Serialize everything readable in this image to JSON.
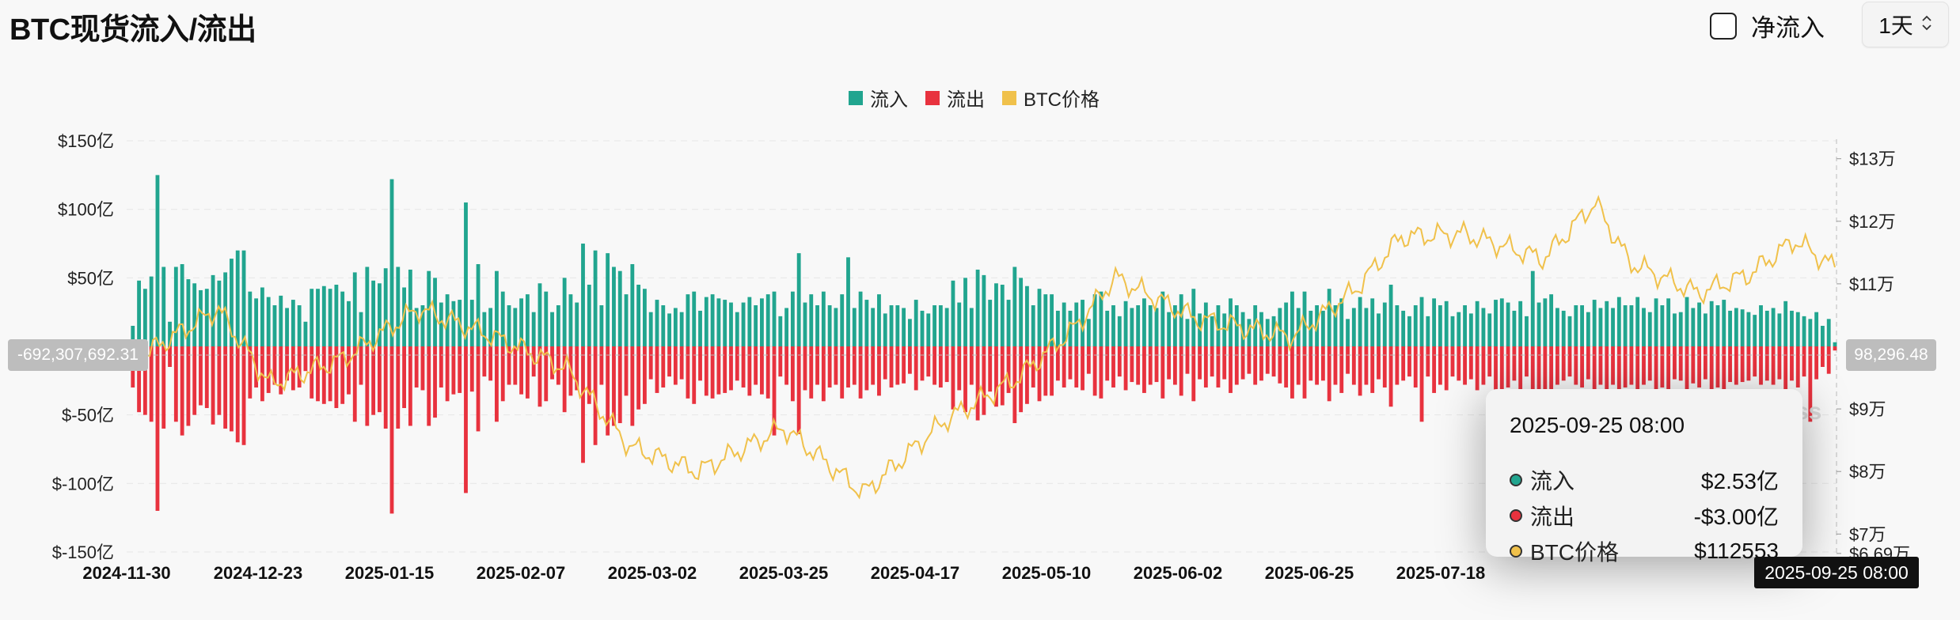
{
  "header": {
    "title": "BTC现货流入/流出",
    "net_flow_label": "净流入",
    "period_value": "1天",
    "period_arrow": "⌃⌄"
  },
  "colors": {
    "inflow": "#21a58f",
    "outflow": "#e8323e",
    "price": "#f0c14b",
    "grid": "#e6e6e6"
  },
  "legend": [
    {
      "name": "流入",
      "color": "#21a58f"
    },
    {
      "name": "流出",
      "color": "#e8323e"
    },
    {
      "name": "BTC价格",
      "color": "#f0c14b"
    }
  ],
  "tooltip": {
    "date": "2025-09-25 08:00",
    "rows": [
      {
        "name": "流入",
        "value": "$2.53亿",
        "color": "#21a58f"
      },
      {
        "name": "流出",
        "value": "-$3.00亿",
        "color": "#e8323e"
      },
      {
        "name": "BTC价格",
        "value": "$112553",
        "color": "#f0c14b"
      }
    ]
  },
  "crosshair": {
    "left_value": "-692,307,692.31",
    "right_value": "98,296.48",
    "date_label": "2025-09-25 08:00"
  },
  "watermark": "ss",
  "chart_data": {
    "type": "bar",
    "title": "BTC现货流入/流出",
    "xlabel": "",
    "ylabel": "",
    "x_start": "2024-11-30",
    "x_end": "2025-09-25",
    "x_tick_labels": [
      "2024-11-30",
      "2024-12-23",
      "2025-01-15",
      "2025-02-07",
      "2025-03-02",
      "2025-03-25",
      "2025-04-17",
      "2025-05-10",
      "2025-06-02",
      "2025-06-25",
      "2025-07-18"
    ],
    "y_left_ticks": [
      "$150亿",
      "$100亿",
      "$50亿",
      "$-50亿",
      "$-100亿",
      "$-150亿"
    ],
    "y_left_range": [
      -150,
      150
    ],
    "y_left_unit": "亿 USD",
    "y_right_ticks": [
      "$13万",
      "$12万",
      "$11万",
      "$9万",
      "$8万",
      "$7万",
      "$6.69万"
    ],
    "y_right_range": [
      66900,
      130000
    ],
    "series": [
      {
        "name": "流入",
        "type": "bar",
        "values": [
          3,
          15,
          48,
          42,
          51,
          125,
          58,
          18,
          58,
          60,
          49,
          46,
          41,
          42,
          52,
          48,
          54,
          64,
          70,
          70,
          40,
          35,
          43,
          36,
          30,
          37,
          28,
          34,
          30,
          18,
          42,
          42,
          44,
          42,
          45,
          40,
          33,
          54,
          25,
          58,
          48,
          46,
          57,
          122,
          58,
          43,
          56,
          28,
          30,
          55,
          50,
          32,
          38,
          33,
          34,
          105,
          34,
          60,
          25,
          28,
          55,
          40,
          30,
          28,
          35,
          38,
          25,
          46,
          40,
          25,
          30,
          50,
          38,
          32,
          75,
          45,
          70,
          30,
          68,
          58,
          55,
          38,
          60,
          45,
          42,
          25,
          34,
          30,
          24,
          28,
          25,
          38,
          40,
          26,
          36,
          38,
          35,
          34,
          32,
          25,
          32,
          36,
          30,
          35,
          38,
          40,
          22,
          28,
          40,
          68,
          32,
          38,
          30,
          40,
          30,
          28,
          38,
          65,
          28,
          40,
          34,
          28,
          38,
          24,
          30,
          30,
          28,
          20,
          34,
          26,
          24,
          30,
          30,
          28,
          48,
          32,
          50,
          28,
          56,
          52,
          34,
          46,
          45,
          34,
          58,
          50,
          44,
          30,
          42,
          38,
          38,
          26,
          32,
          26,
          32,
          34,
          20,
          38,
          40,
          26,
          30,
          22,
          33,
          28,
          30,
          35,
          30,
          28,
          40,
          25,
          30,
          38,
          20,
          42,
          24,
          32,
          22,
          30,
          24,
          35,
          30,
          25,
          20,
          30,
          25,
          20,
          22,
          28,
          32,
          40,
          28,
          40,
          26,
          30,
          26,
          42,
          30,
          35,
          20,
          28,
          36,
          28,
          35,
          24,
          32,
          45,
          30,
          26,
          22,
          30,
          36,
          22,
          35,
          30,
          33,
          22,
          25,
          30,
          24,
          33,
          28,
          24,
          34,
          35,
          32,
          26,
          33,
          22,
          55,
          32,
          35,
          38,
          28,
          26,
          22,
          30,
          30,
          25,
          34,
          28,
          33,
          28,
          36,
          30,
          30,
          36,
          28,
          25,
          35,
          30,
          35,
          24,
          25,
          36,
          28,
          32,
          24,
          33,
          30,
          34,
          26,
          28,
          27,
          25,
          23,
          30,
          26,
          28,
          24,
          33,
          26,
          25,
          22,
          20,
          25,
          15,
          20,
          3
        ]
      },
      {
        "name": "流出",
        "type": "bar",
        "values": [
          -3,
          -30,
          -48,
          -50,
          -55,
          -120,
          -60,
          -15,
          -55,
          -65,
          -58,
          -50,
          -43,
          -45,
          -57,
          -50,
          -60,
          -62,
          -70,
          -72,
          -38,
          -30,
          -40,
          -34,
          -28,
          -35,
          -25,
          -32,
          -30,
          -18,
          -38,
          -40,
          -42,
          -40,
          -45,
          -42,
          -35,
          -55,
          -28,
          -58,
          -50,
          -48,
          -60,
          -122,
          -60,
          -45,
          -58,
          -30,
          -32,
          -58,
          -52,
          -30,
          -40,
          -35,
          -34,
          -107,
          -33,
          -62,
          -22,
          -25,
          -55,
          -40,
          -28,
          -28,
          -35,
          -38,
          -22,
          -44,
          -40,
          -24,
          -28,
          -48,
          -36,
          -32,
          -85,
          -42,
          -72,
          -28,
          -65,
          -58,
          -56,
          -36,
          -58,
          -46,
          -42,
          -24,
          -34,
          -30,
          -22,
          -28,
          -24,
          -38,
          -42,
          -25,
          -36,
          -38,
          -35,
          -34,
          -32,
          -25,
          -30,
          -36,
          -28,
          -35,
          -38,
          -65,
          -22,
          -28,
          -40,
          -64,
          -32,
          -38,
          -28,
          -40,
          -30,
          -28,
          -38,
          -30,
          -28,
          -38,
          -32,
          -28,
          -36,
          -24,
          -30,
          -28,
          -27,
          -20,
          -32,
          -25,
          -22,
          -28,
          -30,
          -26,
          -46,
          -32,
          -48,
          -28,
          -54,
          -50,
          -33,
          -44,
          -43,
          -34,
          -56,
          -48,
          -42,
          -30,
          -40,
          -36,
          -36,
          -25,
          -30,
          -24,
          -30,
          -32,
          -20,
          -36,
          -38,
          -25,
          -30,
          -22,
          -32,
          -26,
          -28,
          -34,
          -28,
          -26,
          -38,
          -24,
          -28,
          -36,
          -20,
          -40,
          -24,
          -30,
          -22,
          -30,
          -24,
          -34,
          -28,
          -24,
          -20,
          -28,
          -25,
          -20,
          -22,
          -27,
          -30,
          -38,
          -28,
          -38,
          -25,
          -28,
          -25,
          -40,
          -28,
          -34,
          -20,
          -28,
          -36,
          -28,
          -34,
          -24,
          -30,
          -44,
          -28,
          -25,
          -22,
          -30,
          -55,
          -22,
          -34,
          -28,
          -32,
          -22,
          -25,
          -28,
          -24,
          -32,
          -28,
          -22,
          -33,
          -35,
          -30,
          -25,
          -32,
          -22,
          -52,
          -32,
          -34,
          -36,
          -28,
          -25,
          -22,
          -28,
          -30,
          -24,
          -32,
          -28,
          -32,
          -28,
          -35,
          -30,
          -28,
          -35,
          -28,
          -25,
          -34,
          -30,
          -33,
          -24,
          -25,
          -35,
          -27,
          -30,
          -24,
          -32,
          -30,
          -33,
          -26,
          -28,
          -26,
          -25,
          -22,
          -28,
          -25,
          -28,
          -24,
          -32,
          -25,
          -30,
          -22,
          -55,
          -24,
          -15,
          -20,
          -3
        ]
      },
      {
        "name": "BTC价格",
        "type": "line",
        "points_x_date": [
          "2024-11-30",
          "2024-12-16",
          "2024-12-25",
          "2025-01-07",
          "2025-01-20",
          "2025-02-01",
          "2025-02-15",
          "2025-02-26",
          "2025-03-10",
          "2025-03-25",
          "2025-04-08",
          "2025-04-22",
          "2025-05-05",
          "2025-05-15",
          "2025-05-22",
          "2025-06-05",
          "2025-06-22",
          "2025-07-03",
          "2025-07-11",
          "2025-07-22",
          "2025-08-05",
          "2025-08-14",
          "2025-08-20",
          "2025-09-01",
          "2025-09-10",
          "2025-09-18",
          "2025-09-25"
        ],
        "points_y": [
          97000,
          106000,
          94000,
          98000,
          106000,
          102000,
          96500,
          84000,
          80000,
          87000,
          76500,
          88000,
          95000,
          103000,
          111000,
          104500,
          101500,
          109000,
          117500,
          118000,
          114000,
          123000,
          113500,
          108500,
          111500,
          117000,
          112553
        ]
      }
    ]
  }
}
